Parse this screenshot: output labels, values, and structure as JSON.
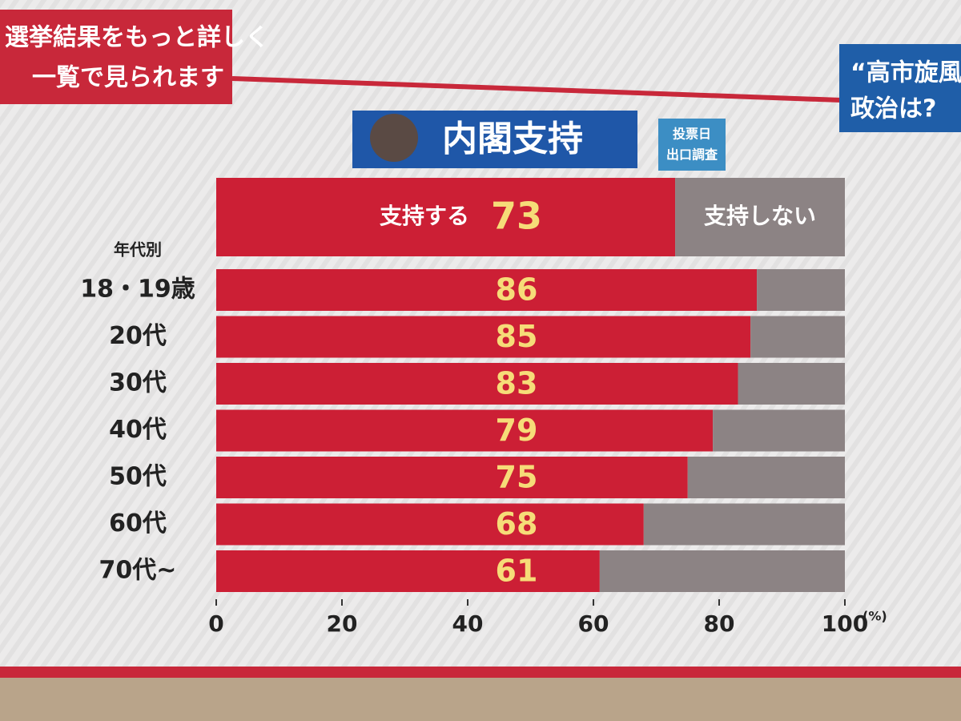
{
  "banner": {
    "lines": [
      "選挙結果をもっと詳しく",
      "一覧で見られます"
    ]
  },
  "side_box": {
    "lines": [
      "“高市旋風",
      "政治は?"
    ]
  },
  "note": {
    "lines": [
      "投票日",
      "出口調査"
    ]
  },
  "chart_data": {
    "type": "bar",
    "stacked": true,
    "title": "内閣支持",
    "category_header": "年代別",
    "categories": [
      null,
      "18・19歳",
      "20代",
      "30代",
      "40代",
      "50代",
      "60代",
      "70代~"
    ],
    "series": [
      {
        "name": "支持する",
        "color": "#cc1f35",
        "values": [
          73,
          86,
          85,
          83,
          79,
          75,
          68,
          61
        ]
      },
      {
        "name": "支持しない",
        "color": "#8c8384",
        "values": [
          27,
          14,
          15,
          17,
          21,
          25,
          32,
          39
        ]
      }
    ],
    "value_label_color": "#f6dc78",
    "xlim": [
      0,
      100
    ],
    "xticks": [
      0,
      20,
      40,
      60,
      80,
      100
    ],
    "x_unit": "(%)"
  }
}
